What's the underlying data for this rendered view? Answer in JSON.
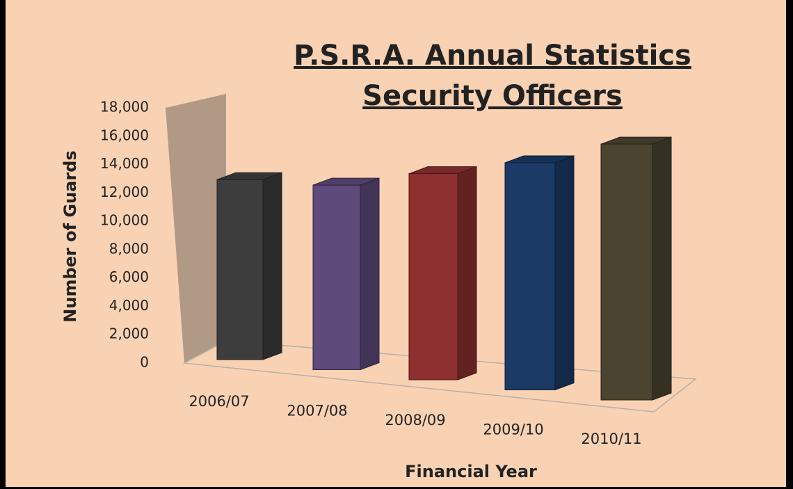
{
  "chart_data": {
    "type": "bar3d",
    "title": "P.S.R.A. Annual Statistics",
    "subtitle": "Security Officers",
    "y_label": "Number of Guards",
    "x_label": "Financial Year",
    "categories": [
      "2006/07",
      "2007/08",
      "2008/09",
      "2009/10",
      "2010/11"
    ],
    "values": [
      12500,
      12300,
      13200,
      14000,
      15200
    ],
    "colors": [
      "#3d3d3d",
      "#5e4a7b",
      "#8e3030",
      "#1b3a66",
      "#4a4430"
    ],
    "ylim": [
      0,
      18000
    ],
    "yticks": [
      0,
      {
        "value": 2000,
        "label": "2,000"
      },
      {
        "value": 4000,
        "label": "4,000"
      },
      {
        "value": 6000,
        "label": "6,000"
      },
      {
        "value": 8000,
        "label": "8,000"
      },
      {
        "value": 10000,
        "label": "10,000"
      },
      {
        "value": 12000,
        "label": "12,000"
      },
      {
        "value": 14000,
        "label": "14,000"
      },
      {
        "value": 16000,
        "label": "16,000"
      },
      {
        "value": 18000,
        "label": "18,000"
      }
    ]
  }
}
